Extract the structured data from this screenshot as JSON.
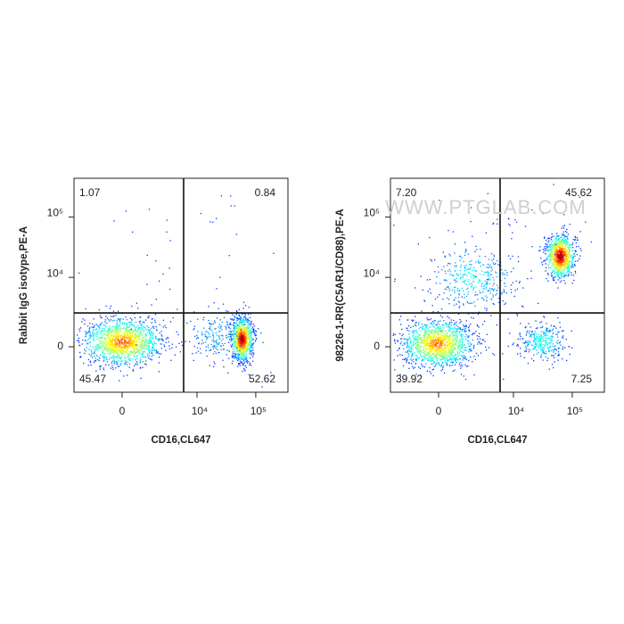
{
  "chart_data": [
    {
      "type": "scatter",
      "xlabel": "CD16,CL647",
      "ylabel": "Rabbit IgG isotype,PE-A",
      "xlim": [
        -3440,
        352000
      ],
      "ylim": [
        -3920,
        436000
      ],
      "xticks": [
        0,
        {
          "value": 10000,
          "label": "10⁴"
        },
        {
          "value": 100000,
          "label": "10⁵"
        }
      ],
      "yticks": [
        0,
        {
          "value": 10000,
          "label": "10⁴"
        },
        {
          "value": 100000,
          "label": "10⁵"
        }
      ],
      "gate_x": 5900,
      "gate_y": 2400,
      "quadrants": [
        "UL",
        "UR",
        "LL",
        "LR"
      ],
      "values": [
        1.07,
        0.84,
        45.47,
        52.62
      ],
      "value_labels": [
        "1.07",
        "0.84",
        "45.47",
        "52.62"
      ]
    },
    {
      "type": "scatter",
      "xlabel": "CD16,CL647",
      "ylabel": "98226-1-RR(C5AR1/CD88),PE-A",
      "xlim": [
        -3440,
        352000
      ],
      "ylim": [
        -3920,
        436000
      ],
      "xticks": [
        0,
        {
          "value": 10000,
          "label": "10⁴"
        },
        {
          "value": 100000,
          "label": "10⁵"
        }
      ],
      "yticks": [
        0,
        {
          "value": 10000,
          "label": "10⁴"
        },
        {
          "value": 100000,
          "label": "10⁵"
        }
      ],
      "gate_x": 5900,
      "gate_y": 2400,
      "quadrants": [
        "UL",
        "UR",
        "LL",
        "LR"
      ],
      "values": [
        7.2,
        45.62,
        39.92,
        7.25
      ],
      "value_labels": [
        "7.20",
        "45.62",
        "39.92",
        "7.25"
      ]
    }
  ],
  "watermark": "WWW.PTGLAB.COM"
}
